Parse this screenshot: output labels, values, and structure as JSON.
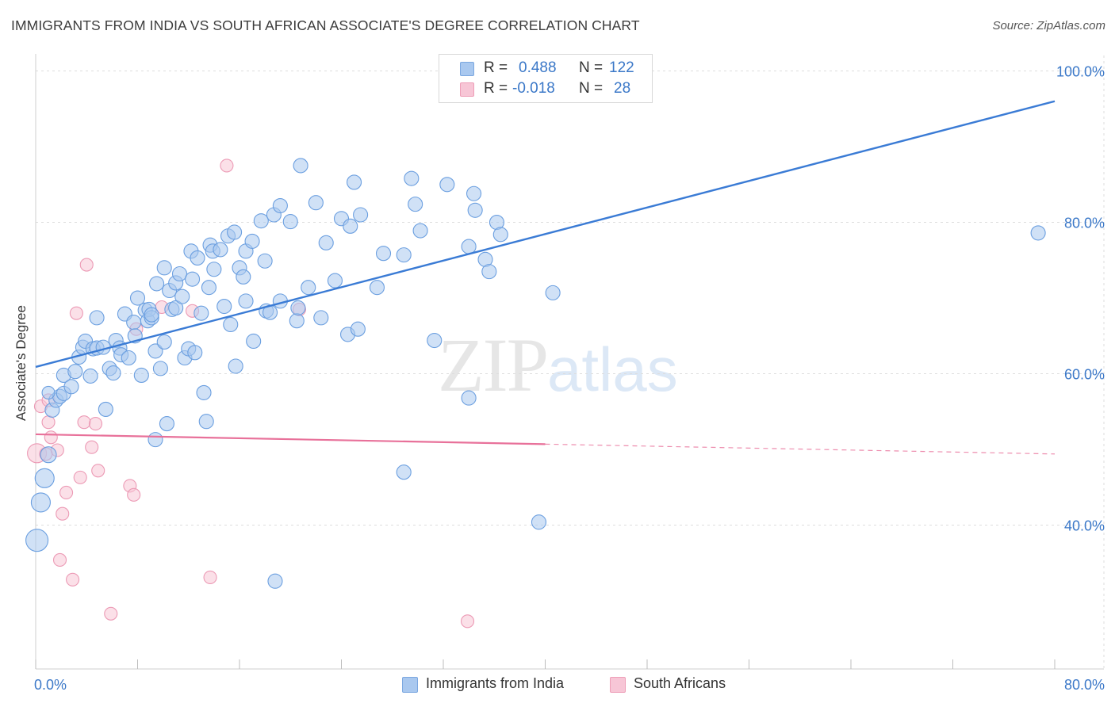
{
  "header": {
    "title": "IMMIGRANTS FROM INDIA VS SOUTH AFRICAN ASSOCIATE'S DEGREE CORRELATION CHART",
    "source": "Source: ZipAtlas.com"
  },
  "watermark": {
    "zip": "ZIP",
    "atlas": "atlas"
  },
  "legend": {
    "rows": [
      {
        "r_label": "R =",
        "r_value": "0.488",
        "n_label": "N =",
        "n_value": "122",
        "color": "#a9c8ef",
        "border": "#7ba7e0"
      },
      {
        "r_label": "R =",
        "r_value": "-0.018",
        "n_label": "N =",
        "n_value": "28",
        "color": "#f7c6d6",
        "border": "#ee9db7"
      }
    ]
  },
  "bottom_legend": [
    {
      "label": "Immigrants from India",
      "color": "#a9c8ef",
      "border": "#7ba7e0"
    },
    {
      "label": "South Africans",
      "color": "#f7c6d6",
      "border": "#ee9db7"
    }
  ],
  "colors": {
    "blue": "#3a7bd5",
    "pink": "#e8719a",
    "blue_fill": "#a9c8ef",
    "pink_fill": "#f7c6d6",
    "grid": "#dddddd",
    "tick_text": "#3b78c8"
  },
  "chart_data": {
    "type": "scatter",
    "title": "IMMIGRANTS FROM INDIA VS SOUTH AFRICAN ASSOCIATE'S DEGREE CORRELATION CHART",
    "xlabel": "",
    "ylabel": "Associate's Degree",
    "xlim": [
      0,
      80
    ],
    "ylim": [
      21,
      101
    ],
    "x_ticks": [
      0,
      80
    ],
    "x_tick_labels": [
      "0.0%",
      "80.0%"
    ],
    "y_ticks": [
      40,
      60,
      80,
      100
    ],
    "y_tick_labels": [
      "40.0%",
      "60.0%",
      "80.0%",
      "100.0%"
    ],
    "grid": true,
    "legend_position": "top-center",
    "series": [
      {
        "name": "Immigrants from India",
        "color": "#3a7bd5",
        "points": [
          [
            0.1,
            38.0,
            14
          ],
          [
            0.4,
            43.0,
            12
          ],
          [
            0.7,
            46.2,
            12
          ],
          [
            1.0,
            49.3,
            10
          ],
          [
            1.3,
            55.2,
            9
          ],
          [
            1.6,
            56.5,
            9
          ],
          [
            1.9,
            57.0,
            9
          ],
          [
            2.2,
            57.4,
            9
          ],
          [
            2.2,
            59.8,
            9
          ],
          [
            2.8,
            58.3,
            9
          ],
          [
            3.1,
            60.3,
            9
          ],
          [
            3.4,
            62.2,
            9
          ],
          [
            3.7,
            63.5,
            9
          ],
          [
            3.9,
            64.3,
            9
          ],
          [
            4.3,
            59.7,
            9
          ],
          [
            4.5,
            63.3,
            9
          ],
          [
            4.8,
            63.4,
            9
          ],
          [
            4.8,
            67.4,
            9
          ],
          [
            5.3,
            63.5,
            9
          ],
          [
            5.5,
            55.3,
            9
          ],
          [
            5.8,
            60.7,
            9
          ],
          [
            6.1,
            60.1,
            9
          ],
          [
            6.3,
            64.4,
            9
          ],
          [
            6.6,
            63.4,
            9
          ],
          [
            6.7,
            62.5,
            9
          ],
          [
            7.0,
            67.9,
            9
          ],
          [
            7.3,
            62.1,
            9
          ],
          [
            7.7,
            66.8,
            9
          ],
          [
            7.8,
            65.0,
            9
          ],
          [
            8.0,
            70.0,
            9
          ],
          [
            8.3,
            59.8,
            9
          ],
          [
            8.6,
            68.4,
            9
          ],
          [
            8.8,
            67.0,
            9
          ],
          [
            8.9,
            68.5,
            9
          ],
          [
            9.1,
            67.4,
            9
          ],
          [
            9.1,
            67.8,
            9
          ],
          [
            9.4,
            63.0,
            9
          ],
          [
            9.5,
            71.9,
            9
          ],
          [
            9.8,
            60.7,
            9
          ],
          [
            10.1,
            64.2,
            9
          ],
          [
            10.1,
            74.0,
            9
          ],
          [
            10.3,
            53.4,
            9
          ],
          [
            10.5,
            71.0,
            9
          ],
          [
            10.7,
            68.5,
            9
          ],
          [
            11.0,
            68.7,
            9
          ],
          [
            11.0,
            72.0,
            9
          ],
          [
            11.3,
            73.2,
            9
          ],
          [
            11.5,
            70.2,
            9
          ],
          [
            11.7,
            62.1,
            9
          ],
          [
            12.0,
            63.3,
            9
          ],
          [
            12.2,
            76.2,
            9
          ],
          [
            12.3,
            72.5,
            9
          ],
          [
            12.5,
            62.8,
            9
          ],
          [
            12.7,
            75.3,
            9
          ],
          [
            13.0,
            68.0,
            9
          ],
          [
            13.2,
            57.5,
            9
          ],
          [
            13.4,
            53.7,
            9
          ],
          [
            13.6,
            71.4,
            9
          ],
          [
            13.7,
            77.0,
            9
          ],
          [
            13.9,
            76.2,
            9
          ],
          [
            14.0,
            73.8,
            9
          ],
          [
            14.5,
            76.4,
            9
          ],
          [
            14.8,
            68.9,
            9
          ],
          [
            15.1,
            78.2,
            9
          ],
          [
            15.3,
            66.5,
            9
          ],
          [
            15.6,
            78.7,
            9
          ],
          [
            15.7,
            61.0,
            9
          ],
          [
            16.0,
            74.0,
            9
          ],
          [
            16.3,
            72.8,
            9
          ],
          [
            16.5,
            69.6,
            9
          ],
          [
            16.5,
            76.2,
            9
          ],
          [
            17.0,
            77.5,
            9
          ],
          [
            17.1,
            64.3,
            9
          ],
          [
            17.7,
            80.2,
            9
          ],
          [
            18.0,
            74.9,
            9
          ],
          [
            18.1,
            68.3,
            9
          ],
          [
            18.4,
            68.1,
            9
          ],
          [
            18.7,
            81.0,
            9
          ],
          [
            19.2,
            69.6,
            9
          ],
          [
            19.2,
            82.2,
            9
          ],
          [
            20.0,
            80.1,
            9
          ],
          [
            20.5,
            67.0,
            9
          ],
          [
            20.6,
            68.7,
            9
          ],
          [
            20.8,
            87.5,
            9
          ],
          [
            21.4,
            71.4,
            9
          ],
          [
            22.0,
            82.6,
            9
          ],
          [
            22.4,
            67.4,
            9
          ],
          [
            22.8,
            77.3,
            9
          ],
          [
            23.5,
            72.3,
            9
          ],
          [
            24.0,
            80.5,
            9
          ],
          [
            24.5,
            65.2,
            9
          ],
          [
            24.7,
            79.5,
            9
          ],
          [
            25.0,
            85.3,
            9
          ],
          [
            25.3,
            65.9,
            9
          ],
          [
            25.5,
            81.0,
            9
          ],
          [
            26.8,
            71.4,
            9
          ],
          [
            27.3,
            75.9,
            9
          ],
          [
            28.9,
            75.7,
            9
          ],
          [
            28.9,
            47.0,
            9
          ],
          [
            29.5,
            85.8,
            9
          ],
          [
            29.8,
            82.4,
            9
          ],
          [
            30.2,
            78.9,
            9
          ],
          [
            31.3,
            64.4,
            9
          ],
          [
            32.3,
            85.0,
            9
          ],
          [
            34.0,
            56.8,
            9
          ],
          [
            34.0,
            76.8,
            9
          ],
          [
            34.4,
            83.8,
            9
          ],
          [
            34.5,
            81.6,
            9
          ],
          [
            35.3,
            75.1,
            9
          ],
          [
            35.6,
            73.5,
            9
          ],
          [
            36.2,
            80.0,
            9
          ],
          [
            36.5,
            78.4,
            9
          ],
          [
            39.5,
            40.4,
            9
          ],
          [
            40.6,
            70.7,
            9
          ],
          [
            78.7,
            78.6,
            9
          ],
          [
            18.8,
            32.6,
            9
          ],
          [
            9.4,
            51.3,
            9
          ],
          [
            1.0,
            57.5,
            8
          ]
        ],
        "trend": {
          "x": [
            0,
            80
          ],
          "y": [
            60.9,
            96.0
          ]
        }
      },
      {
        "name": "South Africans",
        "color": "#e8719a",
        "points": [
          [
            0.1,
            49.5,
            12
          ],
          [
            0.4,
            55.7,
            8
          ],
          [
            1.0,
            53.6,
            8
          ],
          [
            1.0,
            56.5,
            8
          ],
          [
            1.2,
            51.6,
            8
          ],
          [
            1.7,
            49.9,
            8
          ],
          [
            1.9,
            35.4,
            8
          ],
          [
            2.1,
            41.5,
            8
          ],
          [
            2.4,
            44.3,
            8
          ],
          [
            2.9,
            32.8,
            8
          ],
          [
            3.2,
            68.0,
            8
          ],
          [
            3.5,
            46.3,
            8
          ],
          [
            3.8,
            53.6,
            8
          ],
          [
            4.0,
            74.4,
            8
          ],
          [
            4.4,
            50.3,
            8
          ],
          [
            4.7,
            53.4,
            8
          ],
          [
            4.9,
            47.2,
            8
          ],
          [
            5.9,
            28.3,
            8
          ],
          [
            7.4,
            45.2,
            8
          ],
          [
            7.7,
            44.0,
            8
          ],
          [
            7.9,
            65.9,
            8
          ],
          [
            9.9,
            68.8,
            8
          ],
          [
            12.3,
            68.3,
            8
          ],
          [
            13.7,
            33.1,
            8
          ],
          [
            15.0,
            87.5,
            8
          ],
          [
            20.7,
            68.5,
            8
          ],
          [
            33.9,
            27.3,
            8
          ],
          [
            0.8,
            49.4,
            8
          ]
        ],
        "trend": {
          "x": [
            0,
            40
          ],
          "y": [
            52.0,
            50.7
          ]
        },
        "trend_dashed": {
          "x": [
            40,
            80
          ],
          "y": [
            50.7,
            49.4
          ]
        }
      }
    ]
  }
}
